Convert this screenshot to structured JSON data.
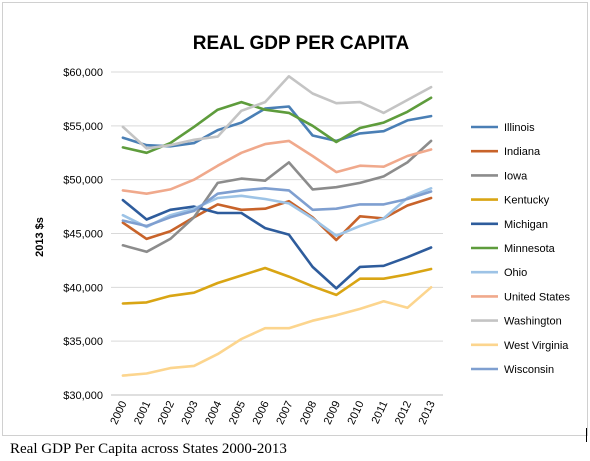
{
  "caption": "Real GDP Per Capita across States 2000-2013",
  "chart_data": {
    "type": "line",
    "title": "REAL GDP PER CAPITA",
    "xlabel": "",
    "ylabel": "2013 $s",
    "x": [
      "2000",
      "2001",
      "2002",
      "2003",
      "2004",
      "2005",
      "2006",
      "2007",
      "2008",
      "2009",
      "2010",
      "2011",
      "2012",
      "2013"
    ],
    "ylim": [
      30000,
      60000
    ],
    "yticks": [
      30000,
      35000,
      40000,
      45000,
      50000,
      55000,
      60000
    ],
    "ytick_labels": [
      "$30,000",
      "$35,000",
      "$40,000",
      "$45,000",
      "$50,000",
      "$55,000",
      "$60,000"
    ],
    "grid": "horizontal",
    "legend_position": "right",
    "series": [
      {
        "name": "Illinois",
        "color": "#4a7fb5",
        "values": [
          53900,
          53200,
          53100,
          53400,
          54600,
          55300,
          56600,
          56800,
          54100,
          53600,
          54300,
          54500,
          55500,
          55900
        ]
      },
      {
        "name": "Indiana",
        "color": "#c8632a",
        "values": [
          46000,
          44500,
          45200,
          46500,
          47700,
          47200,
          47300,
          48000,
          46500,
          44400,
          46600,
          46400,
          47600,
          48300
        ]
      },
      {
        "name": "Iowa",
        "color": "#8c8c8c",
        "values": [
          43900,
          43300,
          44500,
          46500,
          49700,
          50100,
          49900,
          51600,
          49100,
          49300,
          49700,
          50300,
          51600,
          53600
        ]
      },
      {
        "name": "Kentucky",
        "color": "#d9a514",
        "values": [
          38500,
          38600,
          39200,
          39500,
          40400,
          41100,
          41800,
          41000,
          40100,
          39300,
          40800,
          40800,
          41200,
          41700
        ]
      },
      {
        "name": "Michigan",
        "color": "#2e5c9c",
        "values": [
          48100,
          46300,
          47200,
          47500,
          46900,
          46900,
          45500,
          44900,
          41900,
          39900,
          41900,
          42000,
          42800,
          43700
        ]
      },
      {
        "name": "Minnesota",
        "color": "#5e9c3c",
        "values": [
          53000,
          52500,
          53400,
          54900,
          56500,
          57200,
          56500,
          56200,
          55000,
          53500,
          54800,
          55300,
          56300,
          57600
        ]
      },
      {
        "name": "Ohio",
        "color": "#9dc3e6",
        "values": [
          46700,
          45600,
          46700,
          47300,
          48300,
          48500,
          48200,
          47800,
          46400,
          44800,
          45700,
          46400,
          48300,
          49200
        ]
      },
      {
        "name": "United States",
        "color": "#f0a98c",
        "values": [
          49000,
          48700,
          49100,
          50000,
          51300,
          52500,
          53300,
          53600,
          52200,
          50700,
          51300,
          51200,
          52200,
          52800
        ]
      },
      {
        "name": "Washington",
        "color": "#c4c4c4",
        "values": [
          54900,
          52900,
          53200,
          53700,
          54000,
          56400,
          57200,
          59600,
          58000,
          57100,
          57200,
          56200,
          57400,
          58600
        ]
      },
      {
        "name": "West Virginia",
        "color": "#fcd58e",
        "values": [
          31800,
          32000,
          32500,
          32700,
          33800,
          35200,
          36200,
          36200,
          36900,
          37400,
          38000,
          38700,
          38100,
          40000
        ]
      },
      {
        "name": "Wisconsin",
        "color": "#7f9fd0",
        "values": [
          46200,
          45700,
          46500,
          47100,
          48700,
          49000,
          49200,
          49000,
          47200,
          47300,
          47700,
          47700,
          48200,
          48900
        ]
      }
    ]
  }
}
